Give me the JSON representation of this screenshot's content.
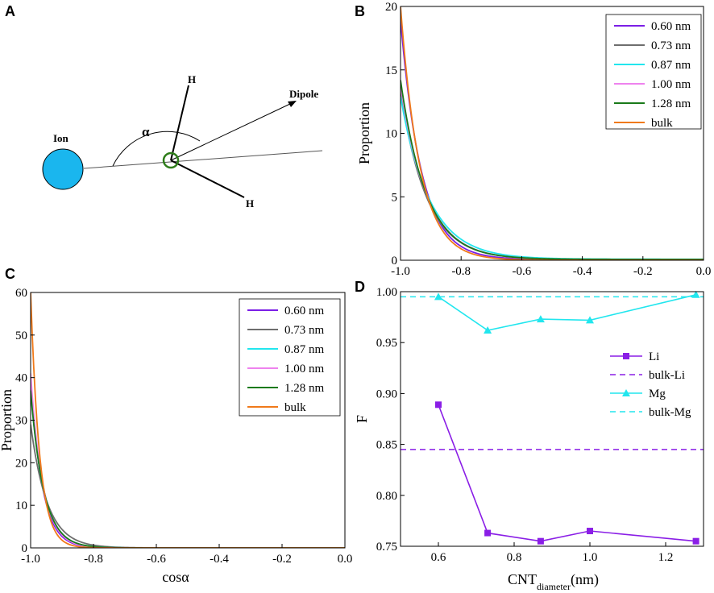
{
  "panels": {
    "a": "A",
    "b": "B",
    "c": "C",
    "d": "D"
  },
  "diagram": {
    "ion_label": "Ion",
    "alpha_label": "α",
    "h_top_label": "H",
    "h_bottom_label": "H",
    "dipole_label": "Dipole",
    "ion_color": "#1ab6ee",
    "oxygen_color": "#2e7d1a"
  },
  "chart_data": [
    {
      "id": "B",
      "type": "line",
      "title": "",
      "xlabel": "",
      "ylabel": "Proportion",
      "xlim": [
        -1.0,
        0.0
      ],
      "ylim": [
        0,
        20
      ],
      "xticks": [
        "-1.0",
        "-0.8",
        "-0.6",
        "-0.4",
        "-0.2",
        "0.0"
      ],
      "yticks": [
        "0",
        "5",
        "10",
        "15",
        "20"
      ],
      "legend_position": "top-right",
      "series": [
        {
          "name": "0.60 nm",
          "color": "#7b1ee6",
          "y0": 19.0,
          "k": 14.5,
          "c": 0.05
        },
        {
          "name": "0.73 nm",
          "color": "#6e6e6e",
          "y0": 13.3,
          "k": 11.5,
          "c": 0.05
        },
        {
          "name": "0.87 nm",
          "color": "#22e6ee",
          "y0": 12.9,
          "k": 10.5,
          "c": 0.08
        },
        {
          "name": "1.00 nm",
          "color": "#ee82ee",
          "y0": 13.8,
          "k": 11.5,
          "c": 0.05
        },
        {
          "name": "1.28 nm",
          "color": "#1a7a1a",
          "y0": 14.2,
          "k": 11.8,
          "c": 0.07
        },
        {
          "name": "bulk",
          "color": "#f07a1a",
          "y0": 20.0,
          "k": 15.5,
          "c": 0.0
        }
      ]
    },
    {
      "id": "C",
      "type": "line",
      "title": "",
      "xlabel": "cosα",
      "ylabel": "Proportion",
      "xlim": [
        -1.0,
        0.0
      ],
      "ylim": [
        0,
        60
      ],
      "xticks": [
        "-1.0",
        "-0.8",
        "-0.6",
        "-0.4",
        "-0.2",
        "0.0"
      ],
      "yticks": [
        "0",
        "10",
        "20",
        "30",
        "40",
        "50",
        "60"
      ],
      "legend_position": "top-right",
      "series": [
        {
          "name": "0.60 nm",
          "color": "#7b1ee6",
          "y0": 40.0,
          "k": 27.0,
          "c": 0.0
        },
        {
          "name": "0.73 nm",
          "color": "#6e6e6e",
          "y0": 29.0,
          "k": 19.0,
          "c": 0.0
        },
        {
          "name": "0.87 nm",
          "color": "#22e6ee",
          "y0": 37.0,
          "k": 24.0,
          "c": 0.0
        },
        {
          "name": "1.00 nm",
          "color": "#ee82ee",
          "y0": 41.0,
          "k": 26.0,
          "c": 0.0
        },
        {
          "name": "1.28 nm",
          "color": "#1a7a1a",
          "y0": 37.0,
          "k": 24.0,
          "c": 0.0
        },
        {
          "name": "bulk",
          "color": "#f07a1a",
          "y0": 60.0,
          "k": 35.0,
          "c": 0.0
        }
      ]
    },
    {
      "id": "D",
      "type": "line",
      "title": "",
      "xlabel": "CNT",
      "xlabel_sub": "diameter",
      "xlabel_suffix": "(nm)",
      "ylabel": "F",
      "xlim": [
        0.5,
        1.3
      ],
      "ylim": [
        0.75,
        1.0
      ],
      "xticks": [
        "0.6",
        "0.8",
        "1.0",
        "1.2"
      ],
      "yticks": [
        "0.75",
        "0.80",
        "0.85",
        "0.90",
        "0.95",
        "1.00"
      ],
      "legend_position": "right",
      "series": [
        {
          "name": "Li",
          "color": "#8a1ee6",
          "marker": "square",
          "x": [
            0.6,
            0.73,
            0.87,
            1.0,
            1.28
          ],
          "y": [
            0.889,
            0.763,
            0.755,
            0.765,
            0.755
          ]
        },
        {
          "name": "bulk-Li",
          "color": "#8a1ee6",
          "dashed": true,
          "y": 0.845
        },
        {
          "name": "Mg",
          "color": "#22e6ee",
          "marker": "triangle",
          "x": [
            0.6,
            0.73,
            0.87,
            1.0,
            1.28
          ],
          "y": [
            0.995,
            0.962,
            0.973,
            0.972,
            0.997
          ]
        },
        {
          "name": "bulk-Mg",
          "color": "#22e6ee",
          "dashed": true,
          "y": 0.995
        }
      ]
    }
  ]
}
